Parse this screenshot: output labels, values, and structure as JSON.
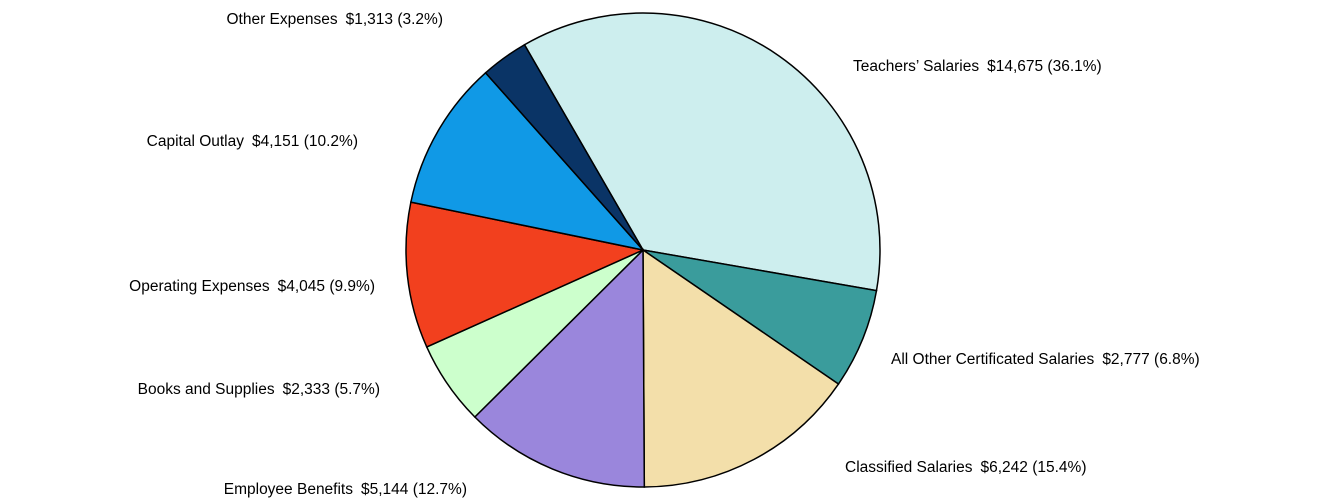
{
  "chart_data": {
    "type": "pie",
    "categories": [
      "Teachers’ Salaries",
      "All Other Certificated Salaries",
      "Classified Salaries",
      "Employee Benefits",
      "Books and Supplies",
      "Operating Expenses",
      "Capital Outlay",
      "Other Expenses"
    ],
    "values": [
      14675,
      2777,
      6242,
      5144,
      2333,
      4045,
      4151,
      1313
    ],
    "value_labels": [
      "$14,675 (36.1%)",
      "$2,777 (6.8%)",
      "$6,242 (15.4%)",
      "$5,144 (12.7%)",
      "$2,333 (5.7%)",
      "$4,045 (9.9%)",
      "$4,151 (10.2%)",
      "$1,313 (3.2%)"
    ],
    "colors": [
      "#cdeeee",
      "#3a9c9c",
      "#f3dfaa",
      "#9a86dc",
      "#ccffcc",
      "#f2401e",
      "#1099e6",
      "#0a3466"
    ]
  }
}
